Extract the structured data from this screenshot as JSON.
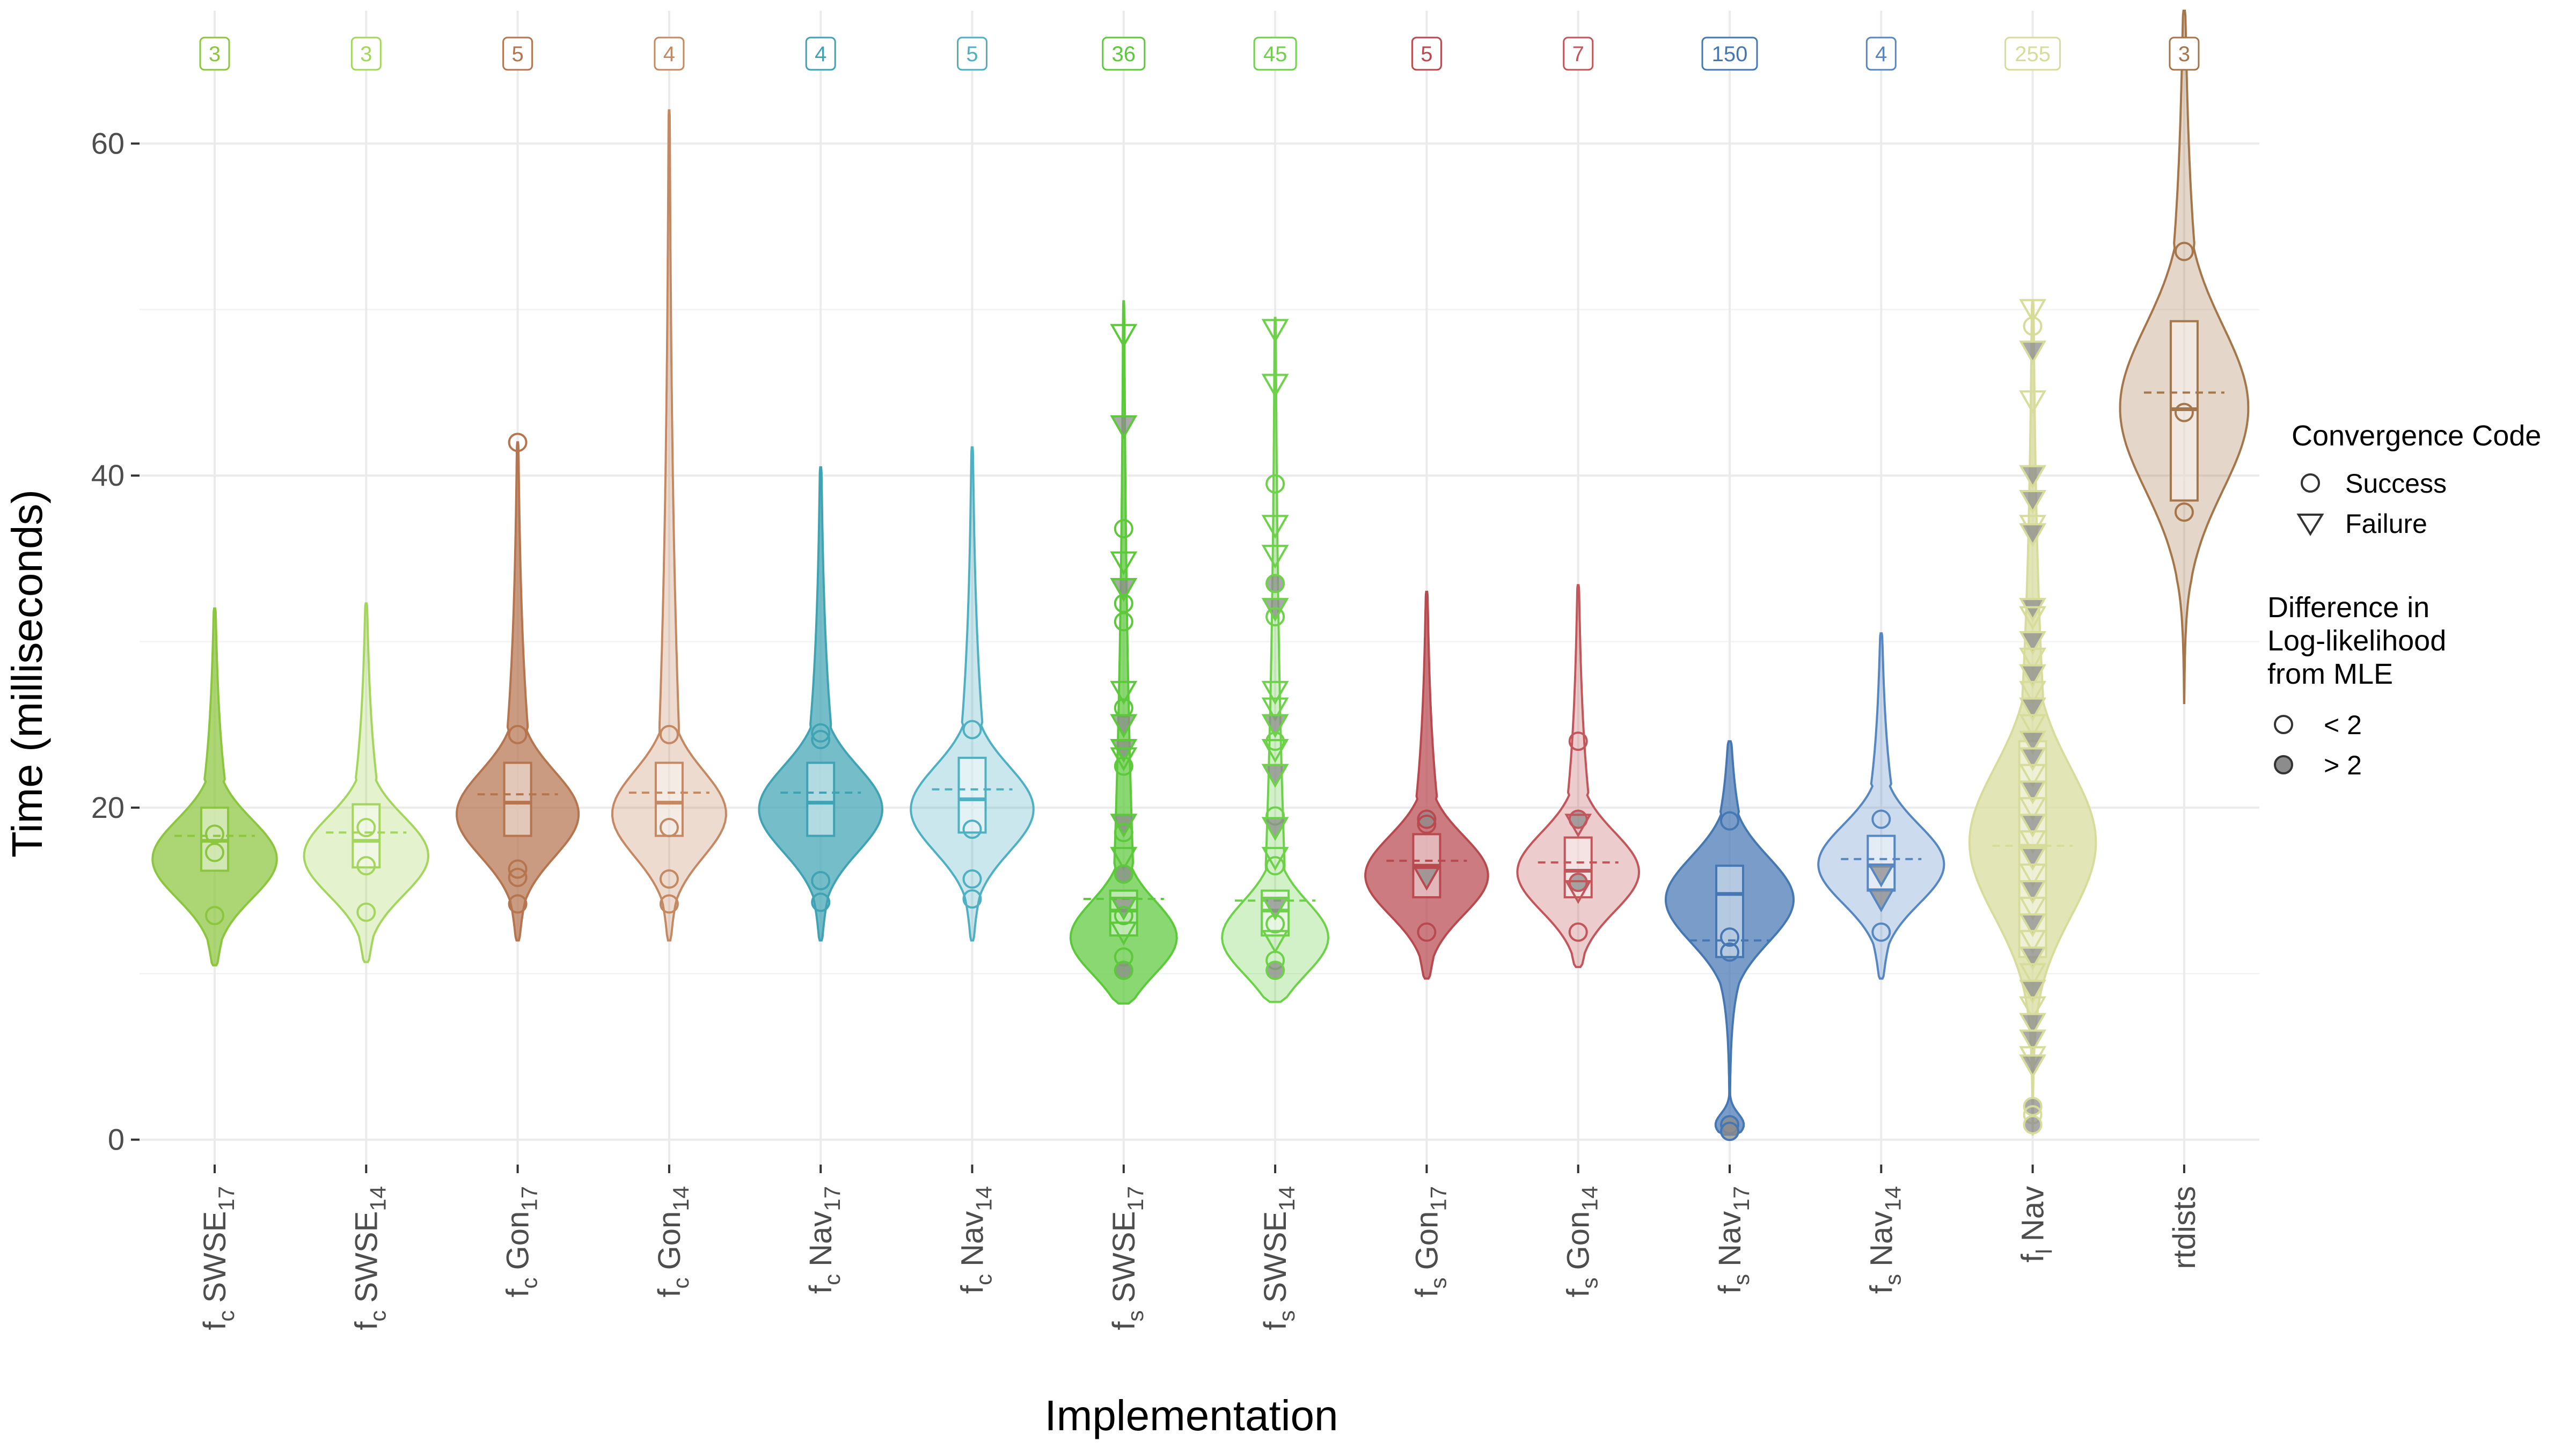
{
  "chart_data": {
    "type": "violin",
    "title": "",
    "xlabel": "Implementation",
    "ylabel": "Time (milliseconds)",
    "ylim": [
      -1.5,
      68
    ],
    "yticks": [
      0,
      20,
      40,
      60
    ],
    "y_tick_labels": [
      "0",
      "20",
      "40",
      "60"
    ],
    "grid": true,
    "legend_position": "right",
    "legend": {
      "convergence_title": "Convergence Code",
      "convergence_items": [
        {
          "label": "Success",
          "shape": "circle"
        },
        {
          "label": "Failure",
          "shape": "triangle-down"
        }
      ],
      "difference_title_lines": [
        "Difference in",
        "Log-likelihood",
        "from MLE"
      ],
      "difference_items": [
        {
          "label": "< 2",
          "fill": "none"
        },
        {
          "label": "> 2",
          "fill": "grey"
        }
      ]
    },
    "categories": [
      {
        "base": "f",
        "sub1": "c",
        "name": "SWSE",
        "sub2": "17",
        "color": "#8cc63f",
        "count": "3",
        "min": 10.5,
        "max": 32,
        "peak": 16.8,
        "spread": 2.4,
        "median": 18.0,
        "q1": 16.2,
        "q3": 20.0,
        "mean": 18.3,
        "points": [
          {
            "y": 18.4,
            "s": "c",
            "g": false
          },
          {
            "y": 17.3,
            "s": "c",
            "g": false
          },
          {
            "y": 13.5,
            "s": "c",
            "g": false
          }
        ]
      },
      {
        "base": "f",
        "sub1": "c",
        "name": "SWSE",
        "sub2": "14",
        "color": "#a4d65e",
        "count": "3",
        "min": 10.7,
        "max": 32.3,
        "peak": 17.0,
        "spread": 2.4,
        "median": 18.0,
        "q1": 16.4,
        "q3": 20.2,
        "mean": 18.5,
        "points": [
          {
            "y": 18.8,
            "s": "c",
            "g": false
          },
          {
            "y": 16.5,
            "s": "c",
            "g": false
          },
          {
            "y": 13.7,
            "s": "c",
            "g": false
          }
        ]
      },
      {
        "base": "f",
        "sub1": "c",
        "name": "Gon",
        "sub2": "17",
        "color": "#b5754f",
        "count": "5",
        "min": 12,
        "max": 42,
        "peak": 19.5,
        "spread": 2.6,
        "median": 20.3,
        "q1": 18.3,
        "q3": 22.7,
        "mean": 20.8,
        "points": [
          {
            "y": 42,
            "s": "c",
            "g": false
          },
          {
            "y": 24.4,
            "s": "c",
            "g": false
          },
          {
            "y": 16.3,
            "s": "c",
            "g": false
          },
          {
            "y": 15.8,
            "s": "c",
            "g": false
          },
          {
            "y": 14.2,
            "s": "c",
            "g": false
          }
        ]
      },
      {
        "base": "f",
        "sub1": "c",
        "name": "Gon",
        "sub2": "14",
        "color": "#c48862",
        "count": "4",
        "min": 12,
        "max": 62,
        "peak": 19.5,
        "spread": 2.6,
        "median": 20.3,
        "q1": 18.3,
        "q3": 22.7,
        "mean": 20.9,
        "points": [
          {
            "y": 24.4,
            "s": "c",
            "g": false
          },
          {
            "y": 18.8,
            "s": "c",
            "g": false
          },
          {
            "y": 15.7,
            "s": "c",
            "g": false
          },
          {
            "y": 14.2,
            "s": "c",
            "g": false
          }
        ]
      },
      {
        "base": "f",
        "sub1": "c",
        "name": "Nav",
        "sub2": "17",
        "color": "#3fa3b4",
        "count": "4",
        "min": 12,
        "max": 40.5,
        "peak": 19.8,
        "spread": 2.6,
        "median": 20.3,
        "q1": 18.3,
        "q3": 22.7,
        "mean": 20.9,
        "points": [
          {
            "y": 24.5,
            "s": "c",
            "g": false
          },
          {
            "y": 24.1,
            "s": "c",
            "g": false
          },
          {
            "y": 15.6,
            "s": "c",
            "g": false
          },
          {
            "y": 14.3,
            "s": "c",
            "g": false
          }
        ]
      },
      {
        "base": "f",
        "sub1": "c",
        "name": "Nav",
        "sub2": "14",
        "color": "#4fb0c2",
        "count": "5",
        "min": 12,
        "max": 41.7,
        "peak": 19.8,
        "spread": 2.6,
        "median": 20.5,
        "q1": 18.5,
        "q3": 23.0,
        "mean": 21.1,
        "points": [
          {
            "y": 24.7,
            "s": "c",
            "g": false
          },
          {
            "y": 18.7,
            "s": "c",
            "g": false
          },
          {
            "y": 15.7,
            "s": "c",
            "g": false
          },
          {
            "y": 14.5,
            "s": "c",
            "g": false
          }
        ]
      },
      {
        "base": "f",
        "sub1": "s",
        "name": "SWSE",
        "sub2": "17",
        "color": "#5cc93a",
        "count": "36",
        "min": 8.2,
        "max": 50.5,
        "peak": 12.0,
        "spread": 2.2,
        "median": 13.8,
        "q1": 12.3,
        "q3": 15.0,
        "mean": 14.5,
        "points": [
          {
            "y": 48.5,
            "s": "t",
            "g": false
          },
          {
            "y": 43.0,
            "s": "t",
            "g": true
          },
          {
            "y": 36.8,
            "s": "c",
            "g": false
          },
          {
            "y": 34.8,
            "s": "t",
            "g": false
          },
          {
            "y": 33.2,
            "s": "t",
            "g": true
          },
          {
            "y": 32.3,
            "s": "c",
            "g": false
          },
          {
            "y": 31.2,
            "s": "c",
            "g": false
          },
          {
            "y": 27.0,
            "s": "t",
            "g": false
          },
          {
            "y": 26.0,
            "s": "c",
            "g": false
          },
          {
            "y": 25.0,
            "s": "t",
            "g": true
          },
          {
            "y": 23.5,
            "s": "t",
            "g": true
          },
          {
            "y": 23.0,
            "s": "t",
            "g": false
          },
          {
            "y": 22.5,
            "s": "c",
            "g": false
          },
          {
            "y": 19.0,
            "s": "t",
            "g": true
          },
          {
            "y": 18.5,
            "s": "c",
            "g": false
          },
          {
            "y": 17.0,
            "s": "t",
            "g": false
          },
          {
            "y": 16.0,
            "s": "c",
            "g": true
          },
          {
            "y": 14.0,
            "s": "t",
            "g": true
          },
          {
            "y": 13.5,
            "s": "c",
            "g": false
          },
          {
            "y": 12.5,
            "s": "t",
            "g": false
          },
          {
            "y": 11.0,
            "s": "c",
            "g": false
          },
          {
            "y": 10.2,
            "s": "c",
            "g": true
          }
        ]
      },
      {
        "base": "f",
        "sub1": "s",
        "name": "SWSE",
        "sub2": "14",
        "color": "#6dd24a",
        "count": "45",
        "min": 8.3,
        "max": 49.5,
        "peak": 12.0,
        "spread": 2.2,
        "median": 13.8,
        "q1": 12.3,
        "q3": 15.0,
        "mean": 14.4,
        "points": [
          {
            "y": 48.8,
            "s": "t",
            "g": false
          },
          {
            "y": 45.5,
            "s": "t",
            "g": false
          },
          {
            "y": 39.5,
            "s": "c",
            "g": false
          },
          {
            "y": 37.0,
            "s": "t",
            "g": false
          },
          {
            "y": 35.2,
            "s": "t",
            "g": false
          },
          {
            "y": 33.5,
            "s": "c",
            "g": true
          },
          {
            "y": 32.0,
            "s": "t",
            "g": true
          },
          {
            "y": 31.5,
            "s": "c",
            "g": false
          },
          {
            "y": 27.0,
            "s": "t",
            "g": false
          },
          {
            "y": 26.0,
            "s": "t",
            "g": false
          },
          {
            "y": 25.0,
            "s": "t",
            "g": true
          },
          {
            "y": 24.0,
            "s": "c",
            "g": false
          },
          {
            "y": 23.5,
            "s": "t",
            "g": false
          },
          {
            "y": 22.0,
            "s": "t",
            "g": true
          },
          {
            "y": 19.5,
            "s": "c",
            "g": false
          },
          {
            "y": 18.8,
            "s": "t",
            "g": true
          },
          {
            "y": 17.0,
            "s": "t",
            "g": false
          },
          {
            "y": 16.5,
            "s": "c",
            "g": false
          },
          {
            "y": 14.0,
            "s": "t",
            "g": true
          },
          {
            "y": 13.0,
            "s": "c",
            "g": false
          },
          {
            "y": 12.0,
            "s": "t",
            "g": false
          },
          {
            "y": 10.8,
            "s": "c",
            "g": false
          },
          {
            "y": 10.2,
            "s": "c",
            "g": true
          }
        ]
      },
      {
        "base": "f",
        "sub1": "s",
        "name": "Gon",
        "sub2": "17",
        "color": "#b84a4f",
        "count": "5",
        "min": 9.7,
        "max": 33,
        "peak": 15.8,
        "spread": 2.4,
        "median": 16.5,
        "q1": 14.6,
        "q3": 18.4,
        "mean": 16.8,
        "points": [
          {
            "y": 19.3,
            "s": "c",
            "g": true
          },
          {
            "y": 19.0,
            "s": "c",
            "g": false
          },
          {
            "y": 15.8,
            "s": "t",
            "g": true
          },
          {
            "y": 12.5,
            "s": "c",
            "g": false
          }
        ]
      },
      {
        "base": "f",
        "sub1": "s",
        "name": "Gon",
        "sub2": "14",
        "color": "#c2565b",
        "count": "7",
        "min": 10.4,
        "max": 33.4,
        "peak": 16.0,
        "spread": 2.4,
        "median": 16.2,
        "q1": 14.6,
        "q3": 18.2,
        "mean": 16.7,
        "points": [
          {
            "y": 24.0,
            "s": "c",
            "g": false
          },
          {
            "y": 19.3,
            "s": "c",
            "g": true
          },
          {
            "y": 19.0,
            "s": "t",
            "g": false
          },
          {
            "y": 15.5,
            "s": "c",
            "g": true
          },
          {
            "y": 15.0,
            "s": "t",
            "g": false
          },
          {
            "y": 12.5,
            "s": "c",
            "g": false
          }
        ]
      },
      {
        "base": "f",
        "sub1": "s",
        "name": "Nav",
        "sub2": "17",
        "color": "#4577b3",
        "count": "150",
        "min": 0.3,
        "max": 24,
        "peak": 14.5,
        "spread": 2.6,
        "median": 14.8,
        "q1": 11.0,
        "q3": 16.5,
        "mean": 12.0,
        "points": [
          {
            "y": 19.2,
            "s": "c",
            "g": false
          },
          {
            "y": 12.2,
            "s": "c",
            "g": false
          },
          {
            "y": 11.3,
            "s": "c",
            "g": false
          },
          {
            "y": 0.9,
            "s": "c",
            "g": true
          },
          {
            "y": 0.5,
            "s": "c",
            "g": true
          }
        ]
      },
      {
        "base": "f",
        "sub1": "s",
        "name": "Nav",
        "sub2": "14",
        "color": "#5687c2",
        "count": "4",
        "min": 9.7,
        "max": 30.5,
        "peak": 16.5,
        "spread": 2.4,
        "median": 16.5,
        "q1": 15.0,
        "q3": 18.3,
        "mean": 16.9,
        "points": [
          {
            "y": 19.3,
            "s": "c",
            "g": false
          },
          {
            "y": 16.0,
            "s": "t",
            "g": true
          },
          {
            "y": 14.5,
            "s": "t",
            "g": true
          },
          {
            "y": 12.5,
            "s": "c",
            "g": false
          }
        ]
      },
      {
        "base": "f",
        "sub1": "l",
        "name": "Nav",
        "sub2": "",
        "color": "#d7dc9a",
        "count": "255",
        "min": 0.3,
        "max": 50.5,
        "peak": 17.8,
        "spread": 4.5,
        "median": 17.7,
        "q1": 11.0,
        "q3": 24.0,
        "mean": 17.7,
        "points": [
          {
            "y": 50.0,
            "s": "t",
            "g": false
          },
          {
            "y": 49.0,
            "s": "c",
            "g": false
          },
          {
            "y": 47.5,
            "s": "t",
            "g": true
          },
          {
            "y": 44.5,
            "s": "t",
            "g": false
          },
          {
            "y": 40.0,
            "s": "t",
            "g": true
          },
          {
            "y": 38.5,
            "s": "t",
            "g": true
          },
          {
            "y": 37.0,
            "s": "t",
            "g": false
          },
          {
            "y": 36.5,
            "s": "t",
            "g": true
          },
          {
            "y": 32.0,
            "s": "t",
            "g": true
          },
          {
            "y": 31.5,
            "s": "t",
            "g": false
          },
          {
            "y": 30.0,
            "s": "t",
            "g": true
          },
          {
            "y": 29.0,
            "s": "t",
            "g": false
          },
          {
            "y": 28.0,
            "s": "t",
            "g": true
          },
          {
            "y": 27.0,
            "s": "t",
            "g": false
          },
          {
            "y": 26.0,
            "s": "t",
            "g": true
          },
          {
            "y": 25.0,
            "s": "t",
            "g": false
          },
          {
            "y": 24.0,
            "s": "t",
            "g": true
          },
          {
            "y": 23.0,
            "s": "t",
            "g": true
          },
          {
            "y": 22.0,
            "s": "t",
            "g": false
          },
          {
            "y": 21.0,
            "s": "t",
            "g": true
          },
          {
            "y": 20.0,
            "s": "t",
            "g": false
          },
          {
            "y": 19.0,
            "s": "t",
            "g": true
          },
          {
            "y": 18.0,
            "s": "t",
            "g": false
          },
          {
            "y": 17.0,
            "s": "t",
            "g": true
          },
          {
            "y": 16.0,
            "s": "t",
            "g": false
          },
          {
            "y": 15.0,
            "s": "t",
            "g": true
          },
          {
            "y": 14.0,
            "s": "t",
            "g": false
          },
          {
            "y": 13.0,
            "s": "t",
            "g": true
          },
          {
            "y": 12.0,
            "s": "t",
            "g": false
          },
          {
            "y": 11.0,
            "s": "t",
            "g": true
          },
          {
            "y": 10.0,
            "s": "t",
            "g": false
          },
          {
            "y": 9.0,
            "s": "t",
            "g": true
          },
          {
            "y": 8.0,
            "s": "t",
            "g": false
          },
          {
            "y": 7.0,
            "s": "t",
            "g": true
          },
          {
            "y": 6.0,
            "s": "t",
            "g": true
          },
          {
            "y": 5.0,
            "s": "t",
            "g": false
          },
          {
            "y": 4.5,
            "s": "t",
            "g": true
          },
          {
            "y": 2.0,
            "s": "c",
            "g": true
          },
          {
            "y": 1.5,
            "s": "c",
            "g": false
          },
          {
            "y": 0.9,
            "s": "c",
            "g": true
          }
        ]
      },
      {
        "base": "",
        "sub1": "",
        "name": "rtdists",
        "sub2": "",
        "color": "#a4764a",
        "count": "3",
        "min": 26.3,
        "max": 68,
        "peak": 44.0,
        "spread": 5.0,
        "median": 44.0,
        "q1": 38.5,
        "q3": 49.3,
        "mean": 45.0,
        "points": [
          {
            "y": 53.5,
            "s": "c",
            "g": false
          },
          {
            "y": 43.8,
            "s": "c",
            "g": false
          },
          {
            "y": 37.8,
            "s": "c",
            "g": false
          }
        ]
      }
    ]
  }
}
